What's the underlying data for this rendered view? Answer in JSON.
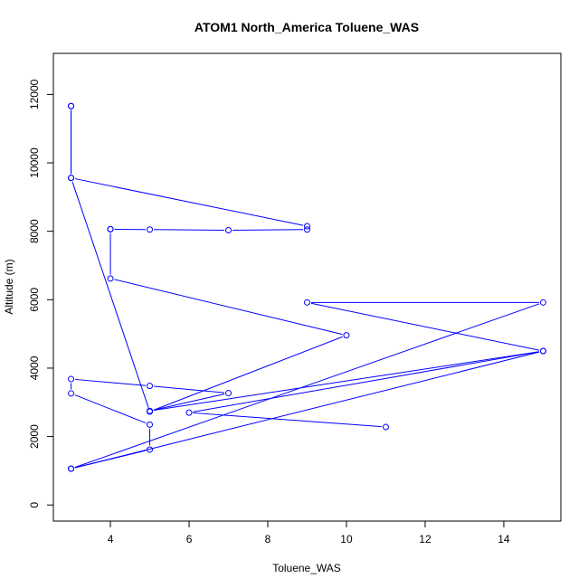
{
  "chart_data": {
    "type": "line",
    "title": "ATOM1 North_America Toluene_WAS",
    "xlabel": "Toluene_WAS",
    "ylabel": "Altitude (m)",
    "xlim": [
      2.55,
      15.45
    ],
    "ylim": [
      -470,
      13200
    ],
    "xticks": [
      "4",
      "6",
      "8",
      "10",
      "12",
      "14"
    ],
    "xtick_values": [
      4,
      6,
      8,
      10,
      12,
      14
    ],
    "yticks": [
      "0",
      "2000",
      "4000",
      "6000",
      "8000",
      "10000",
      "12000"
    ],
    "ytick_values": [
      0,
      2000,
      4000,
      6000,
      8000,
      10000,
      12000
    ],
    "marker": "open-circle",
    "series": [
      {
        "color": "#0000ff",
        "x": [
          3,
          5,
          5,
          3,
          3,
          5,
          7,
          5,
          15,
          3,
          15,
          9,
          15,
          6,
          11
        ],
        "y": [
          1060,
          1620,
          2350,
          3260,
          3680,
          3480,
          3270,
          2750,
          4500,
          1060,
          5920,
          5920,
          4500,
          2700,
          2280
        ]
      },
      {
        "color": "#0000ff",
        "x": [
          3,
          3,
          9,
          9,
          7,
          5,
          4,
          4,
          4,
          10,
          5,
          3,
          3
        ],
        "y": [
          11660,
          9560,
          8150,
          8050,
          8030,
          8050,
          8060,
          8060,
          6620,
          4960,
          2730,
          9560,
          11660
        ]
      }
    ]
  }
}
